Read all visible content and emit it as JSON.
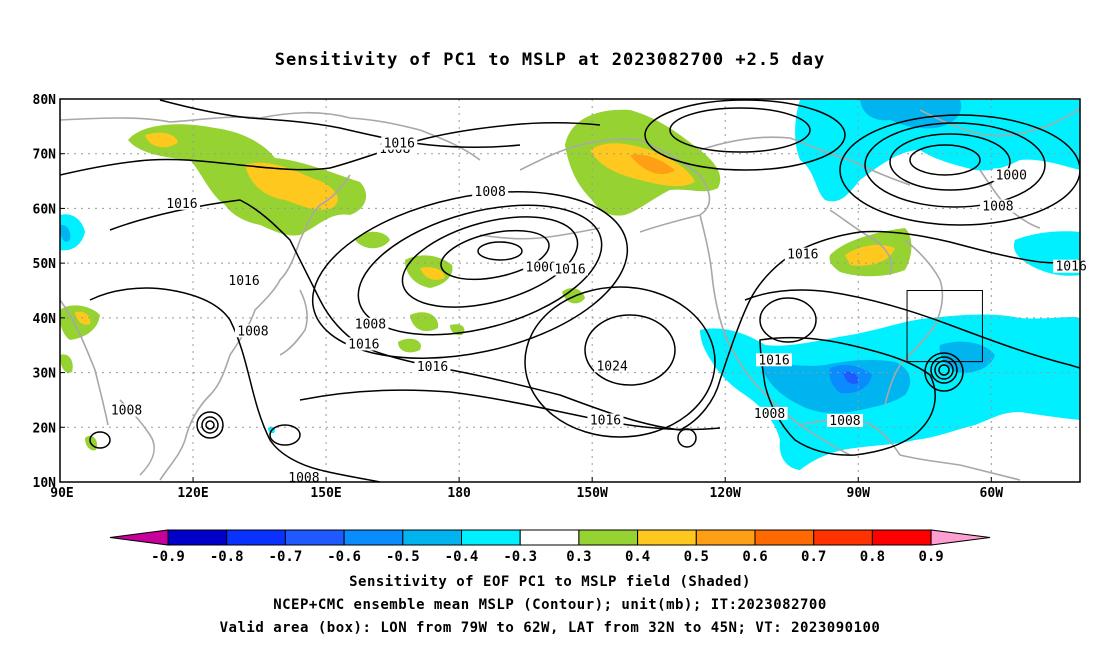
{
  "title": "Sensitivity of PC1 to MSLP at 2023082700 +2.5 day",
  "map": {
    "lon_labels": [
      "90E",
      "120E",
      "150E",
      "180",
      "150W",
      "120W",
      "90W",
      "60W"
    ],
    "lat_labels": [
      "80N",
      "70N",
      "60N",
      "50N",
      "40N",
      "30N",
      "20N",
      "10N"
    ],
    "lon_range": [
      90,
      320
    ],
    "lat_range": [
      10,
      80
    ],
    "grid": true,
    "contour_labels": [
      {
        "text": "1008",
        "lon": 165.5,
        "lat": 70.3
      },
      {
        "text": "1016",
        "lon": 166.5,
        "lat": 71.3
      },
      {
        "text": "1016",
        "lon": 117.5,
        "lat": 60.3
      },
      {
        "text": "1016",
        "lon": 131.5,
        "lat": 46.2
      },
      {
        "text": "1008",
        "lon": 133.5,
        "lat": 37.0
      },
      {
        "text": "1008",
        "lon": 187,
        "lat": 62.5
      },
      {
        "text": "1000",
        "lon": 198.5,
        "lat": 48.7
      },
      {
        "text": "1016",
        "lon": 205,
        "lat": 48.3
      },
      {
        "text": "1008",
        "lon": 160,
        "lat": 38.2
      },
      {
        "text": "1016",
        "lon": 158.5,
        "lat": 34.6
      },
      {
        "text": "1016",
        "lon": 174,
        "lat": 30.5
      },
      {
        "text": "1024",
        "lon": 214.5,
        "lat": 30.6
      },
      {
        "text": "1016",
        "lon": 213,
        "lat": 20.7
      },
      {
        "text": "1008",
        "lon": 105,
        "lat": 22.5
      },
      {
        "text": "1008",
        "lon": 145,
        "lat": 10.2
      },
      {
        "text": "1016",
        "lon": 257.5,
        "lat": 51.0
      },
      {
        "text": "1016",
        "lon": 251,
        "lat": 31.7
      },
      {
        "text": "1008",
        "lon": 250,
        "lat": 21.9
      },
      {
        "text": "1008",
        "lon": 267,
        "lat": 20.6
      },
      {
        "text": "1000",
        "lon": 304.5,
        "lat": 65.5
      },
      {
        "text": "1008",
        "lon": 301.5,
        "lat": 59.8
      },
      {
        "text": "1016",
        "lon": 318,
        "lat": 48.8
      }
    ],
    "valid_box": {
      "lon_min": 281,
      "lon_max": 298,
      "lat_min": 32,
      "lat_max": 45
    }
  },
  "colorbar": {
    "labels": [
      "-0.9",
      "-0.8",
      "-0.7",
      "-0.6",
      "-0.5",
      "-0.4",
      "-0.3",
      "0.3",
      "0.4",
      "0.5",
      "0.6",
      "0.7",
      "0.8",
      "0.9"
    ],
    "colors": [
      "#0000c8",
      "#0a32ff",
      "#1e5aff",
      "#0a8cff",
      "#00b4f0",
      "#00f0ff",
      "#ffffff",
      "#96d232",
      "#ffc81e",
      "#ffa014",
      "#ff6a00",
      "#ff3200",
      "#ff0000"
    ],
    "low_arrow_color": "#c8009a",
    "high_arrow_color": "#ff9ed0"
  },
  "footer": {
    "line1": "Sensitivity of EOF PC1 to MSLP field (Shaded)",
    "line2": "NCEP+CMC ensemble mean MSLP (Contour); unit(mb); IT:2023082700",
    "line3": "Valid area (box): LON from 79W to 62W, LAT from 32N to 45N; VT: 2023090100"
  }
}
